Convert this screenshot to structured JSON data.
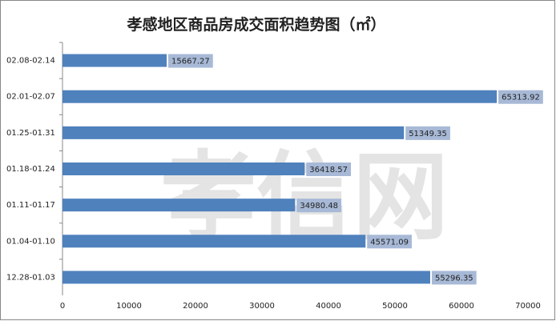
{
  "chart_data": {
    "type": "barh",
    "title": "孝感地区商品房成交面积趋势图（㎡）",
    "watermark": "孝信网",
    "categories": [
      "02.08-02.14",
      "02.01-02.07",
      "01.25-01.31",
      "01.18-01.24",
      "01.11-01.17",
      "01.04-01.10",
      "12.28-01.03"
    ],
    "values": [
      15667.27,
      65313.92,
      51349.35,
      36418.57,
      34980.48,
      45571.09,
      55296.35
    ],
    "color": "#4f81bd",
    "label_color": "#a7b9d6",
    "xlim": [
      0,
      70000
    ],
    "xticks": [
      0,
      10000,
      20000,
      30000,
      40000,
      50000,
      60000,
      70000
    ],
    "grid": false
  }
}
